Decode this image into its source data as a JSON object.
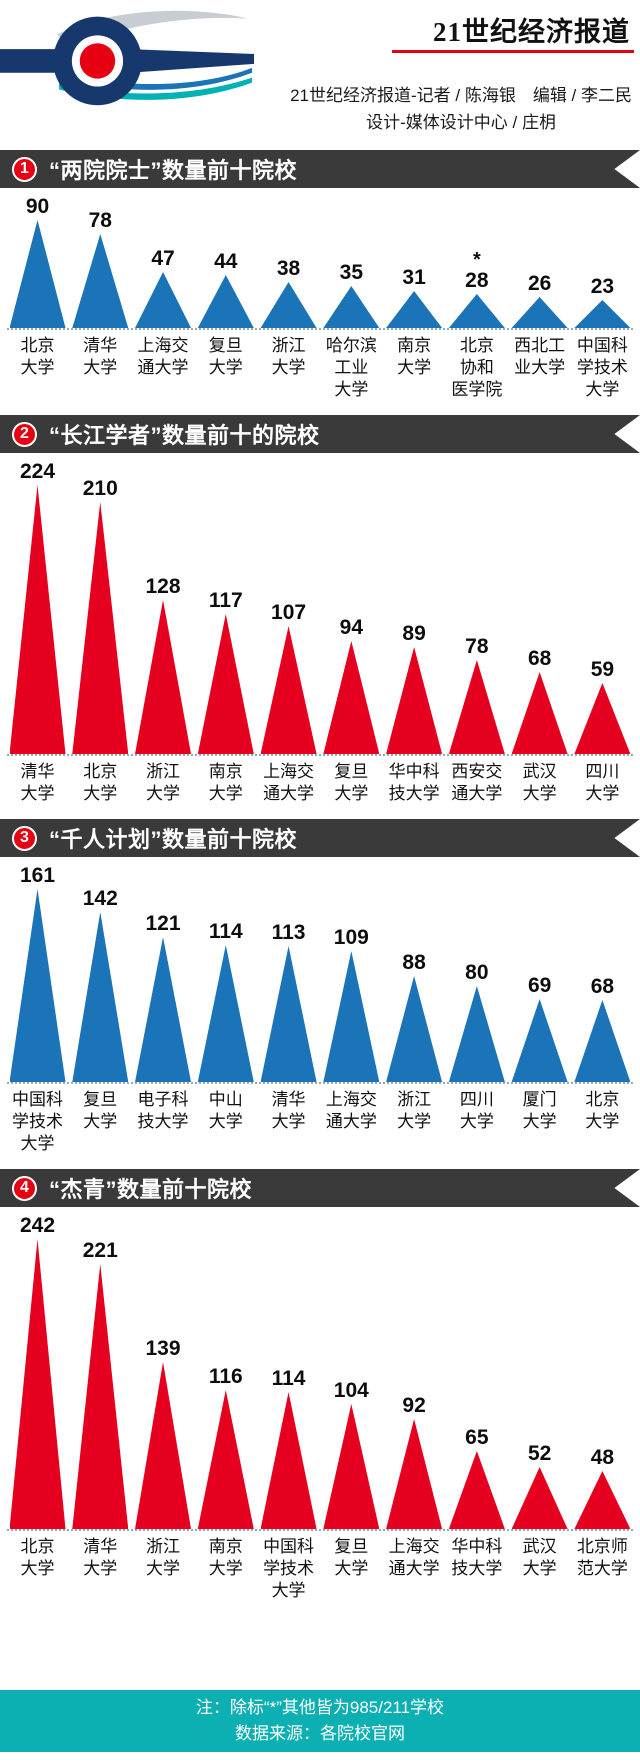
{
  "header": {
    "brand_title": "21世纪经济报道",
    "credit_line1": "21世纪经济报道-记者 / 陈海银　编辑 / 李二民",
    "credit_line2": "设计-媒体设计中心 / 庄枂"
  },
  "colors": {
    "blue": "#1b74b7",
    "red": "#e60020",
    "banner_bg": "#3a3a3a",
    "badge_red": "#e60012",
    "footer_teal": "#0cb0b2",
    "logo_navy": "#16386c",
    "logo_gray": "#c8cdd3",
    "logo_red": "#e60012",
    "logo_teal": "#00b2b3"
  },
  "chart_data": [
    {
      "type": "bar",
      "shape": "triangle",
      "index_label": "1",
      "title": "“两院院士”数量前十院校",
      "color_key": "blue",
      "categories": [
        "北京大学",
        "清华大学",
        "上海交通大学",
        "复旦大学",
        "浙江大学",
        "哈尔滨工业大学",
        "南京大学",
        "北京协和医学院",
        "西北工业大学",
        "中国科学技术大学"
      ],
      "values": [
        90,
        78,
        47,
        44,
        38,
        35,
        31,
        28,
        26,
        23
      ],
      "labels_wrapped": [
        "北京\n大学",
        "清华\n大学",
        "上海交\n通大学",
        "复旦\n大学",
        "浙江\n大学",
        "哈尔滨\n工业\n大学",
        "南京\n大学",
        "北京\n协和\n医学院",
        "西北工\n业大学",
        "中国科\n学技术\n大学"
      ],
      "starred": [
        false,
        false,
        false,
        false,
        false,
        false,
        false,
        true,
        false,
        false
      ]
    },
    {
      "type": "bar",
      "shape": "triangle",
      "index_label": "2",
      "title": "“长江学者”数量前十的院校",
      "color_key": "red",
      "categories": [
        "清华大学",
        "北京大学",
        "浙江大学",
        "南京大学",
        "上海交通大学",
        "复旦大学",
        "华中科技大学",
        "西安交通大学",
        "武汉大学",
        "四川大学"
      ],
      "values": [
        224,
        210,
        128,
        117,
        107,
        94,
        89,
        78,
        68,
        59
      ],
      "labels_wrapped": [
        "清华\n大学",
        "北京\n大学",
        "浙江\n大学",
        "南京\n大学",
        "上海交\n通大学",
        "复旦\n大学",
        "华中科\n技大学",
        "西安交\n通大学",
        "武汉\n大学",
        "四川\n大学"
      ]
    },
    {
      "type": "bar",
      "shape": "triangle",
      "index_label": "3",
      "title": "“千人计划”数量前十院校",
      "color_key": "blue",
      "categories": [
        "中国科学技术大学",
        "复旦大学",
        "电子科技大学",
        "中山大学",
        "清华大学",
        "上海交通大学",
        "浙江大学",
        "四川大学",
        "厦门大学",
        "北京大学"
      ],
      "values": [
        161,
        142,
        121,
        114,
        113,
        109,
        88,
        80,
        69,
        68
      ],
      "labels_wrapped": [
        "中国科\n学技术\n大学",
        "复旦\n大学",
        "电子科\n技大学",
        "中山\n大学",
        "清华\n大学",
        "上海交\n通大学",
        "浙江\n大学",
        "四川\n大学",
        "厦门\n大学",
        "北京\n大学"
      ]
    },
    {
      "type": "bar",
      "shape": "triangle",
      "index_label": "4",
      "title": "“杰青”数量前十院校",
      "color_key": "red",
      "categories": [
        "北京大学",
        "清华大学",
        "浙江大学",
        "南京大学",
        "中国科学技术大学",
        "复旦大学",
        "上海交通大学",
        "华中科技大学",
        "武汉大学",
        "北京师范大学"
      ],
      "values": [
        242,
        221,
        139,
        116,
        114,
        104,
        92,
        65,
        52,
        48
      ],
      "labels_wrapped": [
        "北京\n大学",
        "清华\n大学",
        "浙江\n大学",
        "南京\n大学",
        "中国科\n学技术\n大学",
        "复旦\n大学",
        "上海交\n通大学",
        "华中科\n技大学",
        "武汉\n大学",
        "北京师\n范大学"
      ]
    }
  ],
  "footer": {
    "note": "注：除标“*”其他皆为985/211学校",
    "source": "数据来源：各院校官网"
  }
}
